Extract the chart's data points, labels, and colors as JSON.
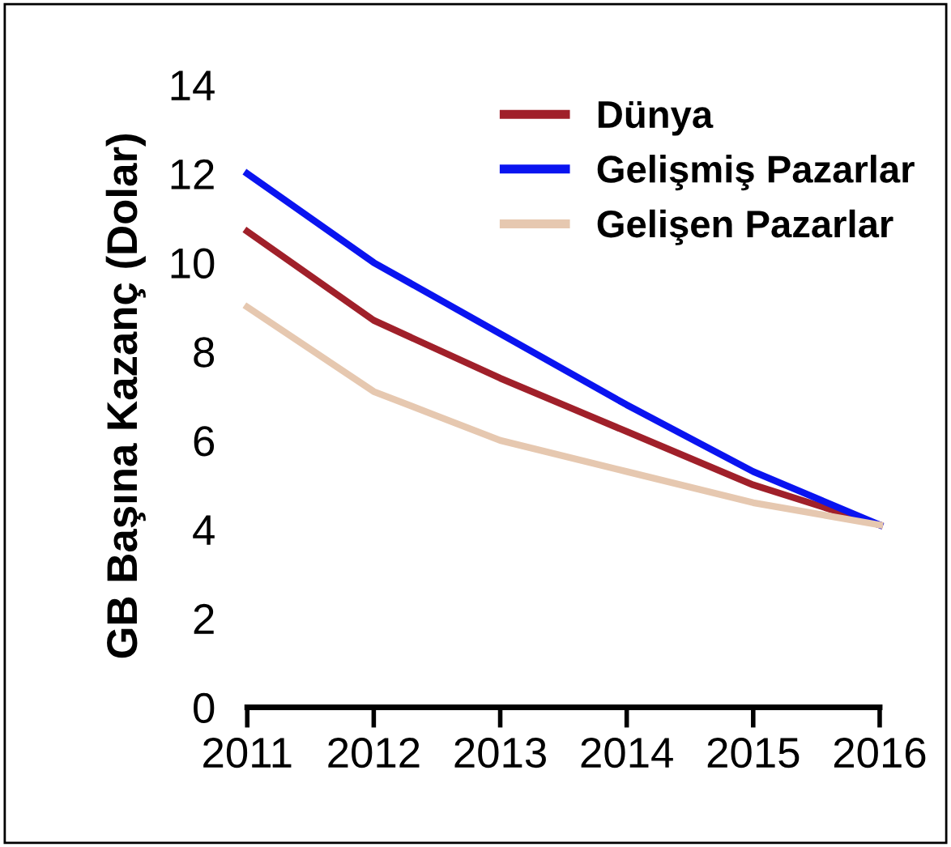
{
  "chart_data": {
    "type": "line",
    "ylabel": "GB Başına Kazanç (Dolar)",
    "x": [
      2011,
      2012,
      2013,
      2014,
      2015,
      2016
    ],
    "series": [
      {
        "name": "Dünya",
        "color": "#a0202a",
        "values": [
          10.7,
          8.7,
          7.4,
          6.2,
          5.0,
          4.1
        ]
      },
      {
        "name": "Gelişmiş Pazarlar",
        "color": "#0a14f0",
        "values": [
          12.0,
          10.0,
          8.4,
          6.8,
          5.3,
          4.1
        ]
      },
      {
        "name": "Gelişen Pazarlar",
        "color": "#e6c8b0",
        "values": [
          9.0,
          7.1,
          6.0,
          5.3,
          4.6,
          4.1
        ]
      }
    ],
    "xlim": [
      2011,
      2016
    ],
    "xticks": [
      2011,
      2012,
      2013,
      2014,
      2015,
      2016
    ],
    "ylim": [
      0,
      14
    ],
    "yticks": [
      0,
      2,
      4,
      6,
      8,
      10,
      12,
      14
    ],
    "grid": false,
    "legend": "top right",
    "marker": "none",
    "line_style": "solid"
  }
}
